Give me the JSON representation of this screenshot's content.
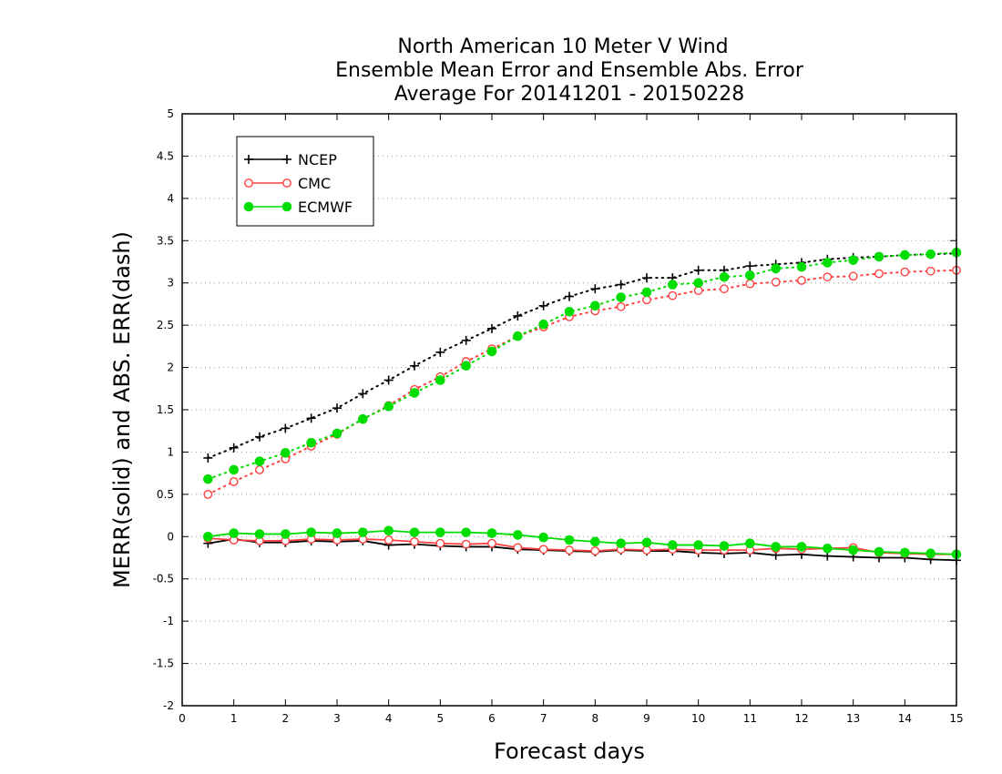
{
  "chart_data": {
    "type": "line",
    "title_lines": [
      "North American 10 Meter V Wind",
      "Ensemble Mean Error and Ensemble Abs. Error",
      "Average For 20141201 - 20150228"
    ],
    "xlabel": "Forecast days",
    "ylabel": "MERR(solid) and ABS. ERR(dash)",
    "xlim": [
      0,
      15
    ],
    "ylim": [
      -2,
      5
    ],
    "xticks": [
      "0",
      "1",
      "2",
      "3",
      "4",
      "5",
      "6",
      "7",
      "8",
      "9",
      "10",
      "11",
      "12",
      "13",
      "14",
      "15"
    ],
    "yticks": [
      "-2",
      "-1.5",
      "-1",
      "-0.5",
      "0",
      "0.5",
      "1",
      "1.5",
      "2",
      "2.5",
      "3",
      "3.5",
      "4",
      "4.5",
      "5"
    ],
    "grid": "dotted horizontal",
    "legend_position": "top-left",
    "x": [
      0.5,
      1,
      1.5,
      2,
      2.5,
      3,
      3.5,
      4,
      4.5,
      5,
      5.5,
      6,
      6.5,
      7,
      7.5,
      8,
      8.5,
      9,
      9.5,
      10,
      10.5,
      11,
      11.5,
      12,
      12.5,
      13,
      13.5,
      14,
      14.5,
      15
    ],
    "series": [
      {
        "name": "NCEP",
        "color": "#000000",
        "marker": "plus",
        "merr": [
          -0.08,
          -0.03,
          -0.07,
          -0.07,
          -0.05,
          -0.06,
          -0.05,
          -0.1,
          -0.09,
          -0.11,
          -0.12,
          -0.12,
          -0.15,
          -0.16,
          -0.17,
          -0.18,
          -0.16,
          -0.17,
          -0.17,
          -0.19,
          -0.2,
          -0.19,
          -0.22,
          -0.21,
          -0.23,
          -0.24,
          -0.25,
          -0.25,
          -0.27,
          -0.28
        ],
        "abs_err": [
          0.93,
          1.05,
          1.18,
          1.28,
          1.4,
          1.52,
          1.69,
          1.85,
          2.02,
          2.18,
          2.32,
          2.46,
          2.61,
          2.73,
          2.84,
          2.93,
          2.98,
          3.06,
          3.06,
          3.15,
          3.15,
          3.2,
          3.22,
          3.24,
          3.28,
          3.3,
          3.31,
          3.33,
          3.34,
          3.35
        ]
      },
      {
        "name": "CMC",
        "color": "#ff4040",
        "marker": "open-circle",
        "merr": [
          -0.02,
          -0.04,
          -0.05,
          -0.05,
          -0.03,
          -0.04,
          -0.03,
          -0.04,
          -0.06,
          -0.08,
          -0.09,
          -0.08,
          -0.13,
          -0.15,
          -0.16,
          -0.17,
          -0.15,
          -0.16,
          -0.15,
          -0.16,
          -0.16,
          -0.16,
          -0.14,
          -0.15,
          -0.14,
          -0.13,
          -0.19,
          -0.2,
          -0.21,
          -0.21
        ],
        "abs_err": [
          0.5,
          0.65,
          0.79,
          0.92,
          1.07,
          1.21,
          1.39,
          1.55,
          1.74,
          1.89,
          2.07,
          2.22,
          2.37,
          2.48,
          2.6,
          2.67,
          2.72,
          2.8,
          2.85,
          2.91,
          2.93,
          2.99,
          3.01,
          3.03,
          3.07,
          3.08,
          3.11,
          3.13,
          3.14,
          3.15
        ]
      },
      {
        "name": "ECMWF",
        "color": "#00dd00",
        "marker": "filled-circle",
        "merr": [
          0.0,
          0.04,
          0.03,
          0.03,
          0.05,
          0.04,
          0.05,
          0.07,
          0.05,
          0.05,
          0.05,
          0.04,
          0.02,
          -0.01,
          -0.04,
          -0.06,
          -0.08,
          -0.07,
          -0.1,
          -0.1,
          -0.11,
          -0.08,
          -0.12,
          -0.12,
          -0.14,
          -0.16,
          -0.18,
          -0.19,
          -0.2,
          -0.21
        ],
        "abs_err": [
          0.68,
          0.79,
          0.89,
          0.99,
          1.11,
          1.22,
          1.39,
          1.54,
          1.7,
          1.85,
          2.02,
          2.19,
          2.37,
          2.51,
          2.66,
          2.73,
          2.83,
          2.89,
          2.98,
          3.0,
          3.07,
          3.09,
          3.17,
          3.19,
          3.24,
          3.27,
          3.31,
          3.33,
          3.34,
          3.36
        ]
      }
    ]
  }
}
